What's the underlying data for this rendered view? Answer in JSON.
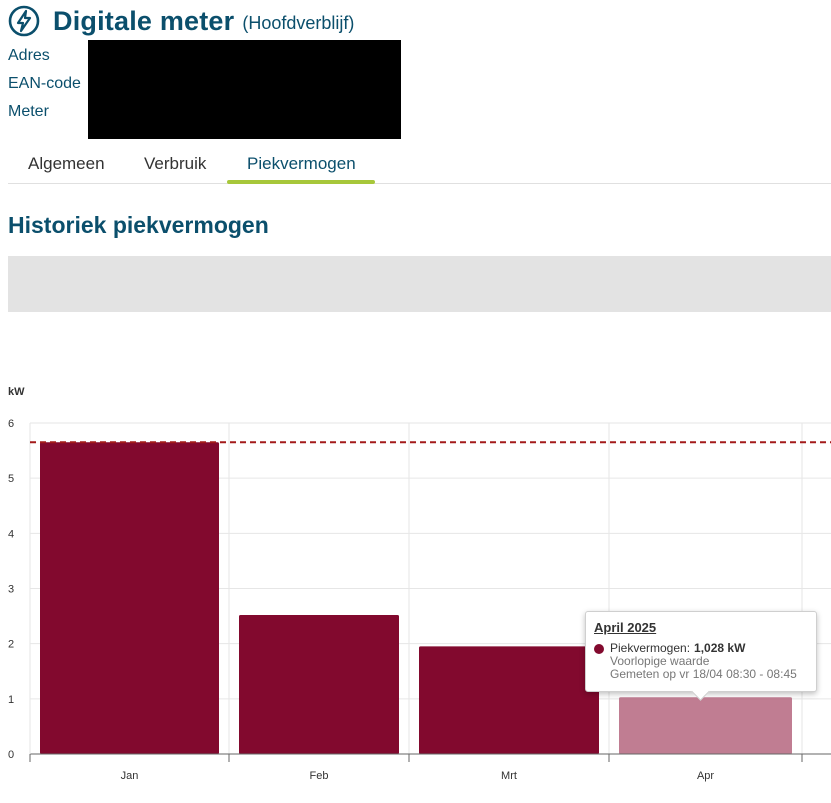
{
  "header": {
    "title": "Digitale meter",
    "subtitle": "(Hoofdverblijf)",
    "icon": "lightning-bolt-icon"
  },
  "info": {
    "labels": [
      "Adres",
      "EAN-code",
      "Meter"
    ]
  },
  "tabs": [
    {
      "label": "Algemeen",
      "active": false
    },
    {
      "label": "Verbruik",
      "active": false
    },
    {
      "label": "Piekvermogen",
      "active": true
    }
  ],
  "colors": {
    "brand": "#0b4f6c",
    "accent": "#a7c73a",
    "bar": "#82092e",
    "bar_highlight": "#c07d92",
    "reference_line": "#a31a1a",
    "banner": "#e3e3e3"
  },
  "section": {
    "title": "Historiek piekvermogen"
  },
  "chart_data": {
    "type": "bar",
    "categories": [
      "Jan",
      "Feb",
      "Mrt",
      "Apr"
    ],
    "values": [
      5.65,
      2.52,
      1.95,
      1.028
    ],
    "highlighted_index": 3,
    "ylabel": "kW",
    "ylim": [
      0,
      6
    ],
    "yticks": [
      0,
      1,
      2,
      3,
      4,
      5,
      6
    ],
    "reference_line": 5.65,
    "grid": true
  },
  "tooltip": {
    "title": "April 2025",
    "series_label": "Piekvermogen:",
    "value": "1,028 kW",
    "line2": "Voorlopige waarde",
    "line3": "Gemeten op vr 18/04 08:30 - 08:45"
  }
}
